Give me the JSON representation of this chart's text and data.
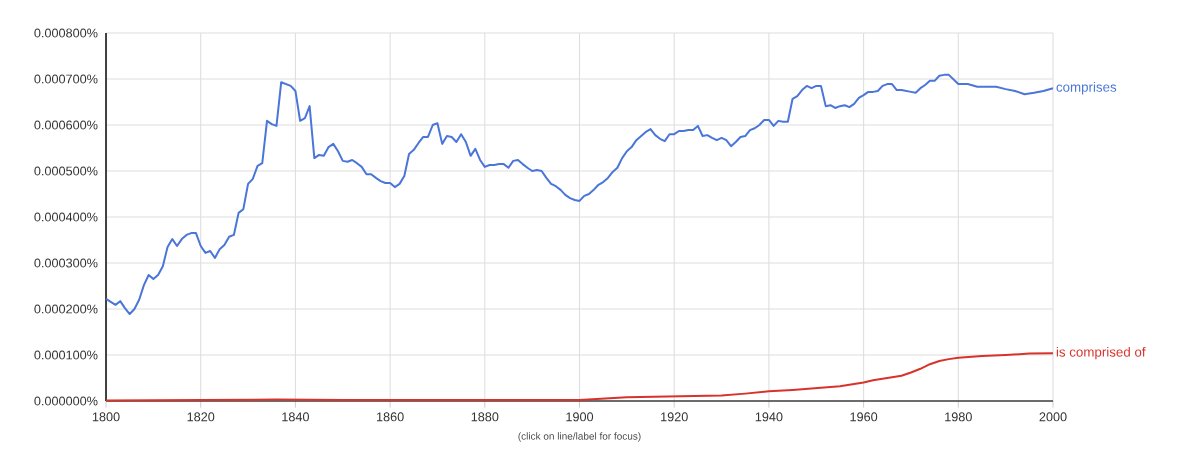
{
  "chart_data": {
    "type": "line",
    "xlim": [
      1800,
      2000
    ],
    "ylim": [
      0,
      0.0008
    ],
    "xticks": [
      1800,
      1820,
      1840,
      1860,
      1880,
      1900,
      1920,
      1940,
      1960,
      1980,
      2000
    ],
    "yticks": [
      {
        "value": 0,
        "label": "0.000000%"
      },
      {
        "value": 0.0001,
        "label": "0.000100%"
      },
      {
        "value": 0.0002,
        "label": "0.000200%"
      },
      {
        "value": 0.0003,
        "label": "0.000300%"
      },
      {
        "value": 0.0004,
        "label": "0.000400%"
      },
      {
        "value": 0.0005,
        "label": "0.000500%"
      },
      {
        "value": 0.0006,
        "label": "0.000600%"
      },
      {
        "value": 0.0007,
        "label": "0.000700%"
      },
      {
        "value": 0.0008,
        "label": "0.000800%"
      }
    ],
    "grid": true,
    "annotations": [
      "(click on line/label for focus)"
    ],
    "series": [
      {
        "name": "comprises",
        "color": "#4a75d9",
        "x": [
          1800,
          1802,
          1803,
          1804,
          1805,
          1806,
          1807,
          1808,
          1809,
          1810,
          1811,
          1812,
          1813,
          1814,
          1815,
          1816,
          1817,
          1818,
          1819,
          1820,
          1821,
          1822,
          1823,
          1824,
          1825,
          1826,
          1827,
          1828,
          1829,
          1830,
          1831,
          1832,
          1833,
          1834,
          1835,
          1836,
          1837,
          1839,
          1840,
          1841,
          1842,
          1843,
          1844,
          1845,
          1846,
          1847,
          1848,
          1849,
          1850,
          1851,
          1852,
          1853,
          1854,
          1855,
          1856,
          1857,
          1858,
          1859,
          1860,
          1861,
          1862,
          1863,
          1864,
          1865,
          1866,
          1867,
          1868,
          1869,
          1870,
          1871,
          1872,
          1873,
          1874,
          1875,
          1876,
          1877,
          1878,
          1879,
          1880,
          1881,
          1882,
          1883,
          1884,
          1885,
          1886,
          1887,
          1888,
          1889,
          1890,
          1891,
          1892,
          1893,
          1894,
          1895,
          1896,
          1897,
          1898,
          1899,
          1900,
          1901,
          1902,
          1903,
          1904,
          1905,
          1906,
          1907,
          1908,
          1909,
          1910,
          1911,
          1912,
          1913,
          1914,
          1915,
          1916,
          1917,
          1918,
          1919,
          1920,
          1921,
          1922,
          1923,
          1924,
          1925,
          1926,
          1927,
          1928,
          1929,
          1930,
          1931,
          1932,
          1933,
          1934,
          1935,
          1936,
          1937,
          1938,
          1939,
          1940,
          1941,
          1942,
          1943,
          1944,
          1945,
          1946,
          1947,
          1948,
          1949,
          1950,
          1951,
          1952,
          1953,
          1954,
          1955,
          1956,
          1957,
          1958,
          1959,
          1960,
          1961,
          1962,
          1963,
          1964,
          1965,
          1966,
          1967,
          1968,
          1969,
          1970,
          1971,
          1972,
          1973,
          1974,
          1975,
          1976,
          1977,
          1978,
          1980,
          1982,
          1984,
          1986,
          1988,
          1990,
          1992,
          1994,
          1996,
          1998,
          2000
        ],
        "values": [
          0.000222,
          0.000209,
          0.000217,
          0.000202,
          0.000189,
          0.0002,
          0.00022,
          0.000252,
          0.000274,
          0.000265,
          0.000274,
          0.000293,
          0.000335,
          0.000352,
          0.000337,
          0.000352,
          0.000361,
          0.000365,
          0.000365,
          0.000337,
          0.000322,
          0.000326,
          0.000311,
          0.00033,
          0.000339,
          0.000357,
          0.000361,
          0.000409,
          0.000417,
          0.000472,
          0.000483,
          0.000511,
          0.000517,
          0.000609,
          0.000602,
          0.000598,
          0.000693,
          0.000685,
          0.000674,
          0.000609,
          0.000615,
          0.000641,
          0.000528,
          0.000535,
          0.000533,
          0.000552,
          0.000559,
          0.000543,
          0.000522,
          0.00052,
          0.000524,
          0.000517,
          0.000509,
          0.000493,
          0.000493,
          0.000485,
          0.000478,
          0.000474,
          0.000474,
          0.000465,
          0.000472,
          0.000489,
          0.000537,
          0.000546,
          0.000561,
          0.000574,
          0.000574,
          0.0006,
          0.000604,
          0.000559,
          0.000576,
          0.000574,
          0.000563,
          0.00058,
          0.000563,
          0.000533,
          0.000548,
          0.000524,
          0.000509,
          0.000513,
          0.000513,
          0.000515,
          0.000515,
          0.000507,
          0.000522,
          0.000524,
          0.000515,
          0.000507,
          0.0005,
          0.000502,
          0.0005,
          0.000485,
          0.000472,
          0.000467,
          0.000459,
          0.000448,
          0.000441,
          0.000437,
          0.000435,
          0.000446,
          0.00045,
          0.000459,
          0.00047,
          0.000476,
          0.000485,
          0.000498,
          0.000507,
          0.000528,
          0.000543,
          0.000552,
          0.000567,
          0.000576,
          0.000585,
          0.000591,
          0.000578,
          0.00057,
          0.000565,
          0.00058,
          0.00058,
          0.000587,
          0.000587,
          0.000589,
          0.000589,
          0.000598,
          0.000576,
          0.000578,
          0.000572,
          0.000567,
          0.000572,
          0.000567,
          0.000554,
          0.000563,
          0.000574,
          0.000576,
          0.000589,
          0.000593,
          0.0006,
          0.000611,
          0.000611,
          0.000598,
          0.000609,
          0.000607,
          0.000607,
          0.000657,
          0.000663,
          0.000676,
          0.000685,
          0.00068,
          0.000685,
          0.000685,
          0.000641,
          0.000643,
          0.000637,
          0.000641,
          0.000643,
          0.000639,
          0.000646,
          0.000659,
          0.000665,
          0.000672,
          0.000672,
          0.000674,
          0.000685,
          0.000689,
          0.000689,
          0.000676,
          0.000676,
          0.000674,
          0.000672,
          0.00067,
          0.00068,
          0.000687,
          0.000696,
          0.000696,
          0.000707,
          0.000709,
          0.000709,
          0.000689,
          0.000689,
          0.000683,
          0.000683,
          0.000683,
          0.000678,
          0.000674,
          0.000667,
          0.00067,
          0.000674,
          0.00068
        ]
      },
      {
        "name": "is comprised of",
        "color": "#d7332b",
        "x": [
          1800,
          1820,
          1836,
          1850,
          1880,
          1900,
          1910,
          1920,
          1930,
          1935,
          1940,
          1945,
          1950,
          1955,
          1960,
          1962,
          1965,
          1968,
          1970,
          1972,
          1974,
          1976,
          1978,
          1980,
          1985,
          1990,
          1995,
          2000
        ],
        "values": [
          1e-06,
          2e-06,
          3e-06,
          2e-06,
          2e-06,
          2e-06,
          8e-06,
          1e-05,
          1.2e-05,
          1.6e-05,
          2.1e-05,
          2.4e-05,
          2.8e-05,
          3.2e-05,
          4e-05,
          4.5e-05,
          5e-05,
          5.5e-05,
          6.2e-05,
          7e-05,
          8e-05,
          8.7e-05,
          9.1e-05,
          9.4e-05,
          9.8e-05,
          0.0001,
          0.000103,
          0.000104
        ]
      }
    ]
  }
}
